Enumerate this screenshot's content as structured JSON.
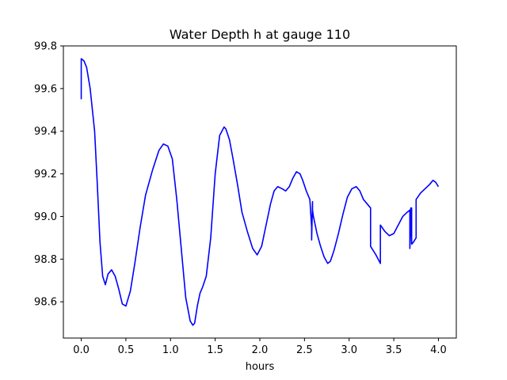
{
  "chart_data": {
    "type": "line",
    "title": "Water Depth h at gauge 110",
    "xlabel": "hours",
    "ylabel": "",
    "xlim": [
      -0.2,
      4.2
    ],
    "ylim": [
      98.43,
      99.8
    ],
    "xticks": [
      0.0,
      0.5,
      1.0,
      1.5,
      2.0,
      2.5,
      3.0,
      3.5,
      4.0
    ],
    "xtick_labels": [
      "0.0",
      "0.5",
      "1.0",
      "1.5",
      "2.0",
      "2.5",
      "3.0",
      "3.5",
      "4.0"
    ],
    "yticks": [
      98.6,
      98.8,
      99.0,
      99.2,
      99.4,
      99.6,
      99.8
    ],
    "ytick_labels": [
      "98.6",
      "98.8",
      "99.0",
      "99.2",
      "99.4",
      "99.6",
      "99.8"
    ],
    "grid": false,
    "series": [
      {
        "color": "#0000ff",
        "x": [
          0.0,
          0.0,
          0.03,
          0.06,
          0.1,
          0.15,
          0.18,
          0.21,
          0.24,
          0.27,
          0.3,
          0.34,
          0.38,
          0.42,
          0.46,
          0.5,
          0.55,
          0.6,
          0.66,
          0.72,
          0.8,
          0.87,
          0.92,
          0.97,
          1.02,
          1.07,
          1.12,
          1.17,
          1.22,
          1.25,
          1.27,
          1.3,
          1.33,
          1.36,
          1.4,
          1.45,
          1.5,
          1.55,
          1.6,
          1.62,
          1.66,
          1.7,
          1.75,
          1.8,
          1.86,
          1.92,
          1.97,
          2.02,
          2.07,
          2.12,
          2.16,
          2.2,
          2.25,
          2.29,
          2.33,
          2.37,
          2.41,
          2.45,
          2.48,
          2.52,
          2.56,
          2.58,
          2.58,
          2.59,
          2.59,
          2.6,
          2.64,
          2.68,
          2.72,
          2.76,
          2.79,
          2.83,
          2.88,
          2.93,
          2.98,
          3.03,
          3.08,
          3.12,
          3.16,
          3.2,
          3.24,
          3.24,
          3.3,
          3.35,
          3.35,
          3.4,
          3.45,
          3.5,
          3.55,
          3.6,
          3.65,
          3.68,
          3.68,
          3.69,
          3.7,
          3.7,
          3.7,
          3.72,
          3.75,
          3.75,
          3.8,
          3.85,
          3.9,
          3.94,
          3.97,
          4.0
        ],
        "y": [
          99.55,
          99.74,
          99.73,
          99.7,
          99.6,
          99.4,
          99.15,
          98.88,
          98.72,
          98.68,
          98.73,
          98.75,
          98.72,
          98.66,
          98.59,
          98.58,
          98.65,
          98.78,
          98.95,
          99.1,
          99.22,
          99.31,
          99.34,
          99.33,
          99.27,
          99.08,
          98.85,
          98.62,
          98.51,
          98.49,
          98.5,
          98.58,
          98.64,
          98.67,
          98.72,
          98.9,
          99.2,
          99.38,
          99.42,
          99.41,
          99.36,
          99.27,
          99.15,
          99.02,
          98.93,
          98.85,
          98.82,
          98.86,
          98.96,
          99.06,
          99.12,
          99.14,
          99.13,
          99.12,
          99.14,
          99.18,
          99.21,
          99.2,
          99.17,
          99.12,
          99.08,
          98.95,
          98.89,
          99.07,
          99.03,
          99.0,
          98.92,
          98.86,
          98.81,
          98.78,
          98.79,
          98.84,
          98.92,
          99.01,
          99.09,
          99.13,
          99.14,
          99.12,
          99.08,
          99.06,
          99.04,
          98.86,
          98.82,
          98.78,
          98.96,
          98.93,
          98.91,
          98.92,
          98.96,
          99.0,
          99.02,
          99.03,
          98.85,
          99.04,
          98.87,
          99.04,
          98.87,
          98.88,
          98.9,
          99.08,
          99.11,
          99.13,
          99.15,
          99.17,
          99.16,
          99.14
        ]
      }
    ]
  }
}
